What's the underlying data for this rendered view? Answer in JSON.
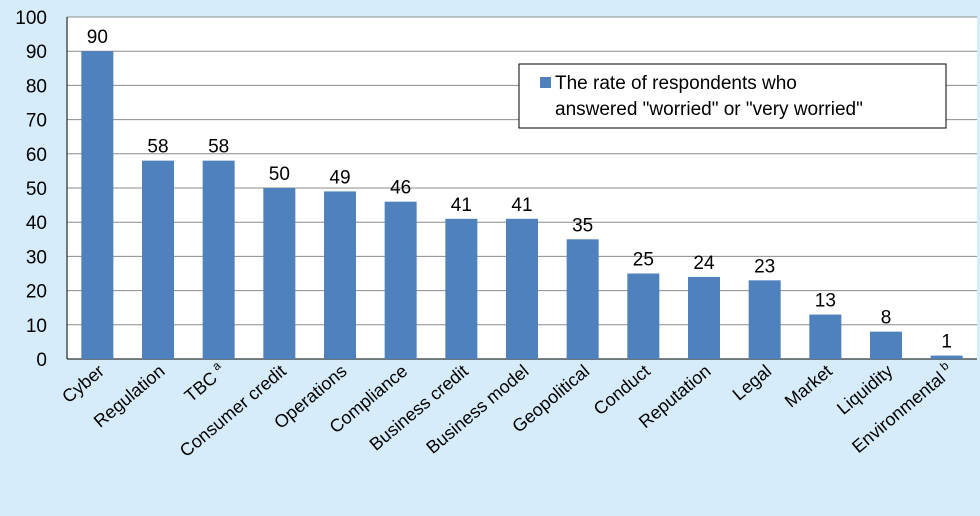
{
  "chart_data": {
    "type": "bar",
    "categories": [
      "Cyber",
      "Regulation",
      "TBC",
      "Consumer credit",
      "Operations",
      "Compliance",
      "Business credit",
      "Business model",
      "Geopolitical",
      "Conduct",
      "Reputation",
      "Legal",
      "Market",
      "Liquidity",
      "Environmental"
    ],
    "category_superscripts": [
      "",
      "",
      "a",
      "",
      "",
      "",
      "",
      "",
      "",
      "",
      "",
      "",
      "",
      "",
      "b"
    ],
    "values": [
      90,
      58,
      58,
      50,
      49,
      46,
      41,
      41,
      35,
      25,
      24,
      23,
      13,
      8,
      1
    ],
    "y_ticks": [
      0,
      10,
      20,
      30,
      40,
      50,
      60,
      70,
      80,
      90,
      100
    ],
    "ylim": [
      0,
      100
    ],
    "grid": true,
    "series": [
      {
        "name": "The rate of respondents who answered \"worried\" or \"very worried\"",
        "values": [
          90,
          58,
          58,
          50,
          49,
          46,
          41,
          41,
          35,
          25,
          24,
          23,
          13,
          8,
          1
        ]
      }
    ],
    "legend": {
      "line1": "The rate of respondents who",
      "line2": "answered \"worried\" or \"very worried\"",
      "placement": "top-right"
    },
    "colors": {
      "bar": "#4f81bd",
      "background": "#d6ecfa",
      "plot": "#ffffff",
      "grid": "#8c8c8c"
    }
  }
}
